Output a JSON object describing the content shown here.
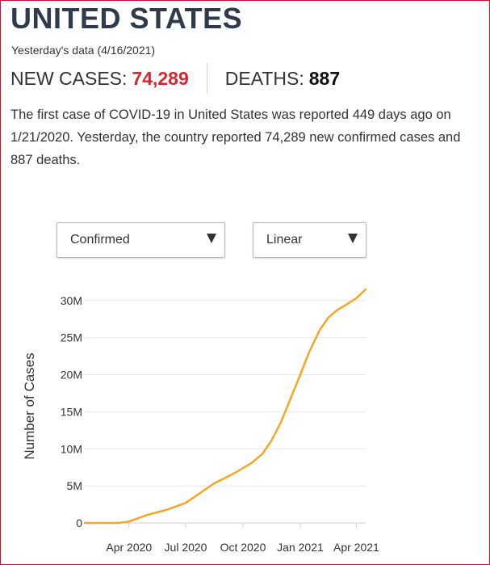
{
  "header": {
    "title": "UNITED STATES",
    "subtitle": "Yesterday's data (4/16/2021)"
  },
  "stats": {
    "new_cases_label": "NEW CASES:",
    "new_cases_value": "74,289",
    "deaths_label": "DEATHS:",
    "deaths_value": "887"
  },
  "description": {
    "part1": "The first case of ",
    "disease": "COVID-19",
    "part2": " in United States was reported 449 days ago on 1/21/2020. Yesterday, the country reported 74,289 new confirmed cases and 887 deaths."
  },
  "controls": {
    "metric_selected": "Confirmed",
    "scale_selected": "Linear"
  },
  "colors": {
    "accent": "#d9262e",
    "line": "#f5a623",
    "grid": "#e6e6e6"
  },
  "chart_data": {
    "type": "line",
    "title": "",
    "xlabel": "",
    "ylabel": "Number of Cases",
    "y_scale": "linear",
    "ylim": [
      0,
      31500000
    ],
    "y_ticks": [
      0,
      5000000,
      10000000,
      15000000,
      20000000,
      25000000,
      30000000
    ],
    "y_tick_labels": [
      "0",
      "5M",
      "10M",
      "15M",
      "20M",
      "25M",
      "30M"
    ],
    "x_tick_labels": [
      "Apr 2020",
      "Jul 2020",
      "Oct 2020",
      "Jan 2021",
      "Apr 2021"
    ],
    "x_tick_dates": [
      "2020-04-01",
      "2020-07-01",
      "2020-10-01",
      "2021-01-01",
      "2021-04-01"
    ],
    "xlim": [
      "2020-01-21",
      "2021-04-16"
    ],
    "grid": true,
    "series": [
      {
        "x": [
          "2020-01-21",
          "2020-02-15",
          "2020-03-15",
          "2020-04-01",
          "2020-05-01",
          "2020-06-01",
          "2020-07-01",
          "2020-07-20",
          "2020-08-15",
          "2020-09-15",
          "2020-10-15",
          "2020-11-01",
          "2020-11-15",
          "2020-12-01",
          "2020-12-15",
          "2021-01-01",
          "2021-01-15",
          "2021-02-01",
          "2021-02-15",
          "2021-03-01",
          "2021-03-15",
          "2021-04-01",
          "2021-04-16"
        ],
        "y": [
          0,
          15,
          3500,
          200000,
          1100000,
          1800000,
          2700000,
          3800000,
          5300000,
          6600000,
          8100000,
          9300000,
          11000000,
          13600000,
          16500000,
          20000000,
          23000000,
          26000000,
          27700000,
          28700000,
          29400000,
          30300000,
          31500000
        ]
      }
    ]
  }
}
